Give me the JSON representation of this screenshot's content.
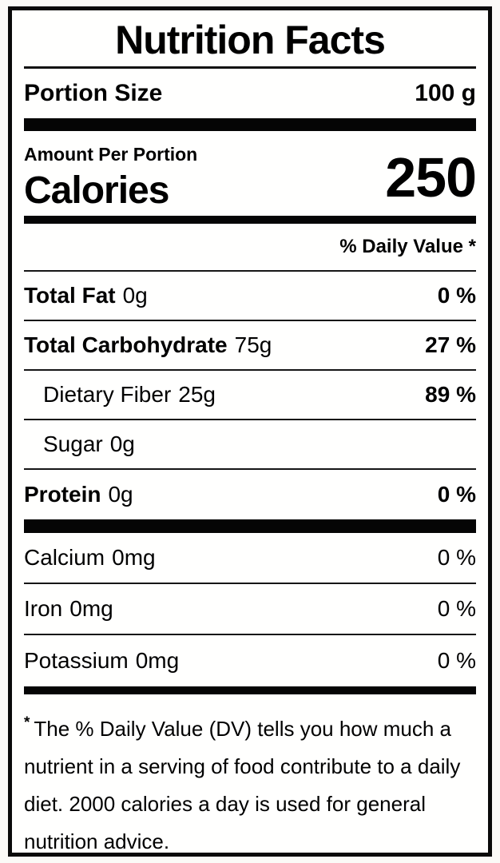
{
  "colors": {
    "text": "#000000",
    "background": "#ffffff",
    "border": "#000000"
  },
  "label": {
    "title": "Nutrition Facts",
    "portion_size": {
      "label": "Portion Size",
      "value": "100 g"
    },
    "amount_per_portion": "Amount Per Portion",
    "calories": {
      "label": "Calories",
      "value": "250"
    },
    "daily_value_header": "% Daily Value *",
    "nutrients": [
      {
        "name": "Total Fat",
        "amount": "0g",
        "daily_value": "0 %"
      },
      {
        "name": "Total Carbohydrate",
        "amount": "75g",
        "daily_value": "27 %"
      },
      {
        "name": "Dietary Fiber",
        "amount": "25g",
        "daily_value": "89 %"
      },
      {
        "name": "Sugar",
        "amount": "0g",
        "daily_value": ""
      },
      {
        "name": "Protein",
        "amount": "0g",
        "daily_value": "0 %"
      }
    ],
    "minerals": [
      {
        "name": "Calcium",
        "amount": "0mg",
        "daily_value": "0 %"
      },
      {
        "name": "Iron",
        "amount": "0mg",
        "daily_value": "0 %"
      },
      {
        "name": "Potassium",
        "amount": "0mg",
        "daily_value": "0 %"
      }
    ],
    "footnote": {
      "marker": "*",
      "lines": [
        "The % Daily Value (DV) tells you how much a",
        "nutrient in a serving of food contribute to a daily",
        "diet. 2000 calories a day is used for general",
        "nutrition advice."
      ]
    }
  }
}
